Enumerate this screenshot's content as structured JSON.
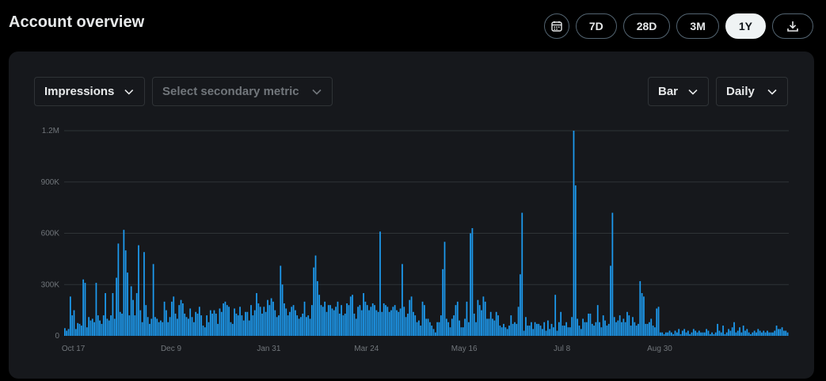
{
  "header": {
    "title": "Account overview",
    "ranges": [
      "7D",
      "28D",
      "3M",
      "1Y"
    ],
    "active_range": "1Y",
    "calendar_icon": "calendar-icon",
    "export_icon": "download-icon"
  },
  "controls": {
    "primary_metric": "Impressions",
    "secondary_metric_placeholder": "Select secondary metric",
    "chart_type": "Bar",
    "interval": "Daily"
  },
  "colors": {
    "bar": "#1d9bf0",
    "card": "#16181c",
    "grid": "#2f3336",
    "active_pill": "#eff3f4"
  },
  "chart_data": {
    "type": "bar",
    "title": "",
    "xlabel": "",
    "ylabel": "",
    "ylim": [
      0,
      1200000
    ],
    "yticks": [
      {
        "value": 0,
        "label": "0"
      },
      {
        "value": 300000,
        "label": "300K"
      },
      {
        "value": 600000,
        "label": "600K"
      },
      {
        "value": 900000,
        "label": "900K"
      },
      {
        "value": 1200000,
        "label": "1.2M"
      }
    ],
    "xticks": [
      {
        "index": 5,
        "label": "Oct 17"
      },
      {
        "index": 58,
        "label": "Dec 9"
      },
      {
        "index": 111,
        "label": "Jan 31"
      },
      {
        "index": 164,
        "label": "Mar 24"
      },
      {
        "index": 217,
        "label": "May 16"
      },
      {
        "index": 270,
        "label": "Jul 8"
      },
      {
        "index": 323,
        "label": "Aug 30"
      }
    ],
    "grid": true,
    "series": [
      {
        "values": [
          45000,
          30000,
          40000,
          230000,
          120000,
          150000,
          40000,
          75000,
          70000,
          60000,
          330000,
          310000,
          50000,
          110000,
          90000,
          100000,
          80000,
          310000,
          120000,
          90000,
          70000,
          120000,
          250000,
          100000,
          90000,
          120000,
          250000,
          100000,
          340000,
          540000,
          140000,
          130000,
          620000,
          500000,
          370000,
          120000,
          290000,
          210000,
          120000,
          250000,
          530000,
          150000,
          80000,
          490000,
          180000,
          110000,
          70000,
          100000,
          420000,
          110000,
          100000,
          80000,
          90000,
          80000,
          200000,
          150000,
          80000,
          110000,
          200000,
          230000,
          130000,
          100000,
          180000,
          210000,
          190000,
          130000,
          110000,
          100000,
          160000,
          110000,
          80000,
          140000,
          130000,
          170000,
          120000,
          60000,
          50000,
          120000,
          80000,
          150000,
          130000,
          150000,
          130000,
          70000,
          160000,
          140000,
          190000,
          200000,
          180000,
          170000,
          80000,
          70000,
          160000,
          130000,
          120000,
          170000,
          120000,
          90000,
          140000,
          140000,
          90000,
          180000,
          120000,
          150000,
          250000,
          190000,
          170000,
          130000,
          170000,
          140000,
          210000,
          180000,
          220000,
          200000,
          150000,
          110000,
          120000,
          410000,
          300000,
          190000,
          160000,
          120000,
          140000,
          170000,
          180000,
          150000,
          120000,
          100000,
          110000,
          130000,
          200000,
          110000,
          120000,
          100000,
          180000,
          400000,
          470000,
          320000,
          240000,
          180000,
          170000,
          200000,
          140000,
          180000,
          180000,
          160000,
          150000,
          170000,
          200000,
          130000,
          180000,
          120000,
          130000,
          190000,
          180000,
          230000,
          240000,
          130000,
          100000,
          170000,
          180000,
          150000,
          250000,
          200000,
          180000,
          150000,
          170000,
          190000,
          180000,
          150000,
          140000,
          610000,
          140000,
          190000,
          180000,
          170000,
          140000,
          150000,
          170000,
          180000,
          150000,
          140000,
          160000,
          420000,
          170000,
          110000,
          130000,
          210000,
          230000,
          140000,
          120000,
          80000,
          90000,
          60000,
          200000,
          180000,
          100000,
          100000,
          80000,
          60000,
          40000,
          20000,
          80000,
          80000,
          120000,
          390000,
          550000,
          100000,
          80000,
          50000,
          100000,
          120000,
          180000,
          200000,
          90000,
          50000,
          50000,
          100000,
          200000,
          80000,
          600000,
          630000,
          130000,
          80000,
          210000,
          180000,
          150000,
          230000,
          200000,
          100000,
          100000,
          140000,
          100000,
          90000,
          140000,
          120000,
          60000,
          50000,
          70000,
          50000,
          40000,
          60000,
          120000,
          70000,
          80000,
          70000,
          170000,
          360000,
          720000,
          30000,
          110000,
          60000,
          60000,
          80000,
          40000,
          80000,
          70000,
          70000,
          60000,
          40000,
          80000,
          30000,
          90000,
          40000,
          70000,
          50000,
          240000,
          30000,
          80000,
          140000,
          60000,
          60000,
          80000,
          50000,
          50000,
          110000,
          1200000,
          880000,
          100000,
          60000,
          40000,
          100000,
          80000,
          80000,
          130000,
          130000,
          70000,
          60000,
          80000,
          180000,
          80000,
          50000,
          120000,
          90000,
          60000,
          70000,
          410000,
          720000,
          110000,
          80000,
          90000,
          120000,
          80000,
          100000,
          80000,
          140000,
          120000,
          60000,
          110000,
          80000,
          60000,
          70000,
          320000,
          250000,
          230000,
          70000,
          70000,
          80000,
          100000,
          60000,
          50000,
          160000,
          170000,
          20000,
          20000,
          10000,
          20000,
          20000,
          30000,
          20000,
          10000,
          30000,
          20000,
          40000,
          10000,
          30000,
          40000,
          20000,
          30000,
          10000,
          20000,
          40000,
          30000,
          20000,
          30000,
          20000,
          20000,
          20000,
          40000,
          30000,
          10000,
          20000,
          10000,
          20000,
          70000,
          30000,
          20000,
          60000,
          10000,
          20000,
          40000,
          30000,
          50000,
          80000,
          20000,
          30000,
          50000,
          20000,
          60000,
          30000,
          40000,
          20000,
          10000,
          20000,
          30000,
          20000,
          40000,
          30000,
          20000,
          30000,
          20000,
          30000,
          20000,
          20000,
          20000,
          30000,
          60000,
          40000,
          40000,
          50000,
          30000,
          30000,
          20000
        ]
      }
    ]
  }
}
